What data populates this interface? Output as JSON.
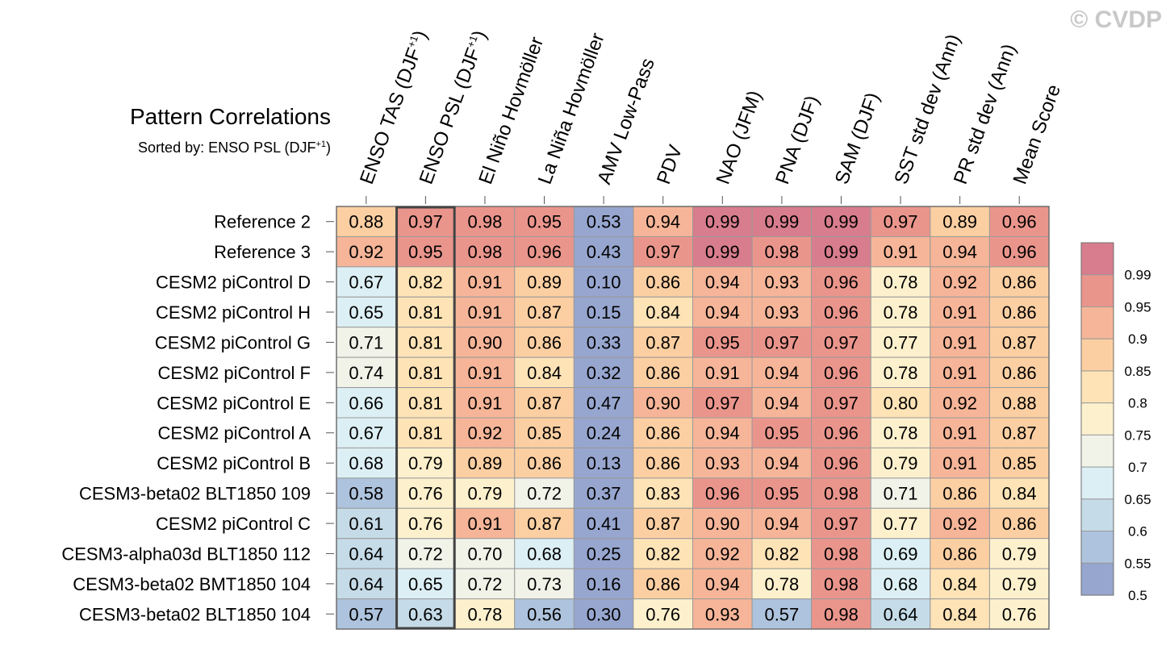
{
  "watermark": "© CVDP",
  "chart_data": {
    "type": "heatmap",
    "title": "Pattern Correlations",
    "subtitle_prefix": "Sorted by: ENSO PSL (DJF",
    "subtitle_sup": "+1",
    "subtitle_suffix": ")",
    "sorted_column_index": 1,
    "columns": [
      {
        "label": "ENSO TAS (DJF",
        "sup": "+1",
        "suffix": ")"
      },
      {
        "label": "ENSO PSL (DJF",
        "sup": "+1",
        "suffix": ")"
      },
      {
        "label": "El Niño Hovmöller"
      },
      {
        "label": "La Niña Hovmöller"
      },
      {
        "label": "AMV Low-Pass"
      },
      {
        "label": "PDV"
      },
      {
        "label": "NAO (JFM)"
      },
      {
        "label": "PNA (DJF)"
      },
      {
        "label": "SAM (DJF)"
      },
      {
        "label": "SST std dev (Ann)"
      },
      {
        "label": "PR std dev (Ann)"
      },
      {
        "label": "Mean Score"
      }
    ],
    "rows": [
      "Reference 2",
      "Reference 3",
      "CESM2 piControl D",
      "CESM2 piControl H",
      "CESM2 piControl G",
      "CESM2 piControl F",
      "CESM2 piControl E",
      "CESM2 piControl A",
      "CESM2 piControl B",
      "CESM3-beta02 BLT1850 109",
      "CESM2 piControl C",
      "CESM3-alpha03d BLT1850 112",
      "CESM3-beta02 BMT1850 104",
      "CESM3-beta02 BLT1850 104"
    ],
    "values": [
      [
        "0.88",
        "0.97",
        "0.98",
        "0.95",
        "0.53",
        "0.94",
        "0.99",
        "0.99",
        "0.99",
        "0.97",
        "0.89",
        "0.96"
      ],
      [
        "0.92",
        "0.95",
        "0.98",
        "0.96",
        "0.43",
        "0.97",
        "0.99",
        "0.98",
        "0.99",
        "0.91",
        "0.94",
        "0.96"
      ],
      [
        "0.67",
        "0.82",
        "0.91",
        "0.89",
        "0.10",
        "0.86",
        "0.94",
        "0.93",
        "0.96",
        "0.78",
        "0.92",
        "0.86"
      ],
      [
        "0.65",
        "0.81",
        "0.91",
        "0.87",
        "0.15",
        "0.84",
        "0.94",
        "0.93",
        "0.96",
        "0.78",
        "0.91",
        "0.86"
      ],
      [
        "0.71",
        "0.81",
        "0.90",
        "0.86",
        "0.33",
        "0.87",
        "0.95",
        "0.97",
        "0.97",
        "0.77",
        "0.91",
        "0.87"
      ],
      [
        "0.74",
        "0.81",
        "0.91",
        "0.84",
        "0.32",
        "0.86",
        "0.91",
        "0.94",
        "0.96",
        "0.78",
        "0.91",
        "0.86"
      ],
      [
        "0.66",
        "0.81",
        "0.91",
        "0.87",
        "0.47",
        "0.90",
        "0.97",
        "0.94",
        "0.97",
        "0.80",
        "0.92",
        "0.88"
      ],
      [
        "0.67",
        "0.81",
        "0.92",
        "0.85",
        "0.24",
        "0.86",
        "0.94",
        "0.95",
        "0.96",
        "0.78",
        "0.91",
        "0.87"
      ],
      [
        "0.68",
        "0.79",
        "0.89",
        "0.86",
        "0.13",
        "0.86",
        "0.93",
        "0.94",
        "0.96",
        "0.79",
        "0.91",
        "0.85"
      ],
      [
        "0.58",
        "0.76",
        "0.79",
        "0.72",
        "0.37",
        "0.83",
        "0.96",
        "0.95",
        "0.98",
        "0.71",
        "0.86",
        "0.84"
      ],
      [
        "0.61",
        "0.76",
        "0.91",
        "0.87",
        "0.41",
        "0.87",
        "0.90",
        "0.94",
        "0.97",
        "0.77",
        "0.92",
        "0.86"
      ],
      [
        "0.64",
        "0.72",
        "0.70",
        "0.68",
        "0.25",
        "0.82",
        "0.92",
        "0.82",
        "0.98",
        "0.69",
        "0.86",
        "0.79"
      ],
      [
        "0.64",
        "0.65",
        "0.72",
        "0.73",
        "0.16",
        "0.86",
        "0.94",
        "0.78",
        "0.98",
        "0.68",
        "0.84",
        "0.79"
      ],
      [
        "0.57",
        "0.63",
        "0.78",
        "0.56",
        "0.30",
        "0.76",
        "0.93",
        "0.57",
        "0.98",
        "0.64",
        "0.84",
        "0.76"
      ]
    ],
    "colorbar": {
      "labels": [
        "0.99",
        "0.95",
        "0.9",
        "0.85",
        "0.8",
        "0.75",
        "0.7",
        "0.65",
        "0.6",
        "0.55",
        "0.5"
      ],
      "levels": [
        0.5,
        0.55,
        0.6,
        0.65,
        0.7,
        0.75,
        0.8,
        0.85,
        0.9,
        0.95,
        0.99
      ],
      "colors": [
        "#97a6cf",
        "#aec3dd",
        "#c5dbe8",
        "#dceff4",
        "#f1f3e9",
        "#fdf1cd",
        "#fde3b6",
        "#fccfa2",
        "#f6b598",
        "#ea958c",
        "#d87d8d"
      ]
    }
  }
}
